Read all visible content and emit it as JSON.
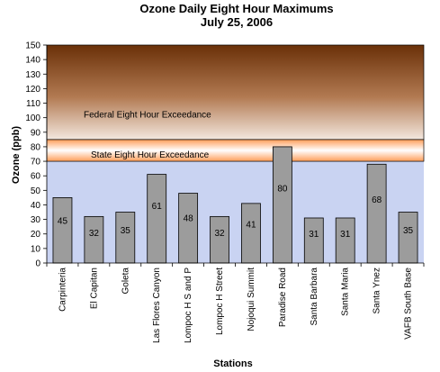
{
  "chart_data": {
    "type": "bar",
    "title": "Ozone Daily Eight Hour Maximums",
    "subtitle": "July 25, 2006",
    "xlabel": "Stations",
    "ylabel": "Ozone (ppb)",
    "ylim": [
      0,
      150
    ],
    "yticks": [
      0,
      10,
      20,
      30,
      40,
      50,
      60,
      70,
      80,
      90,
      100,
      110,
      120,
      130,
      140,
      150
    ],
    "categories": [
      "Carpinteria",
      "El Capitan",
      "Goleta",
      "Las Flores Canyon",
      "Lompoc H S and P",
      "Lompoc H Street",
      "Nojoqui Summit",
      "Paradise Road",
      "Santa Barbara",
      "Santa Maria",
      "Santa Ynez",
      "VAFB South Base"
    ],
    "values": [
      45,
      32,
      35,
      61,
      48,
      32,
      41,
      80,
      31,
      31,
      68,
      35
    ],
    "bands": [
      {
        "label": "State Eight Hour Exceedance",
        "from": 70,
        "to": 85,
        "color": "#ffb27a"
      },
      {
        "label": "Federal Eight Hour Exceedance",
        "from": 85,
        "to": 150,
        "color": "#7a3a10"
      }
    ],
    "below_band_color": "#c9d3f2",
    "bar_color": "#9c9c9c",
    "data_labels": true,
    "grid": false,
    "legend": "none"
  }
}
